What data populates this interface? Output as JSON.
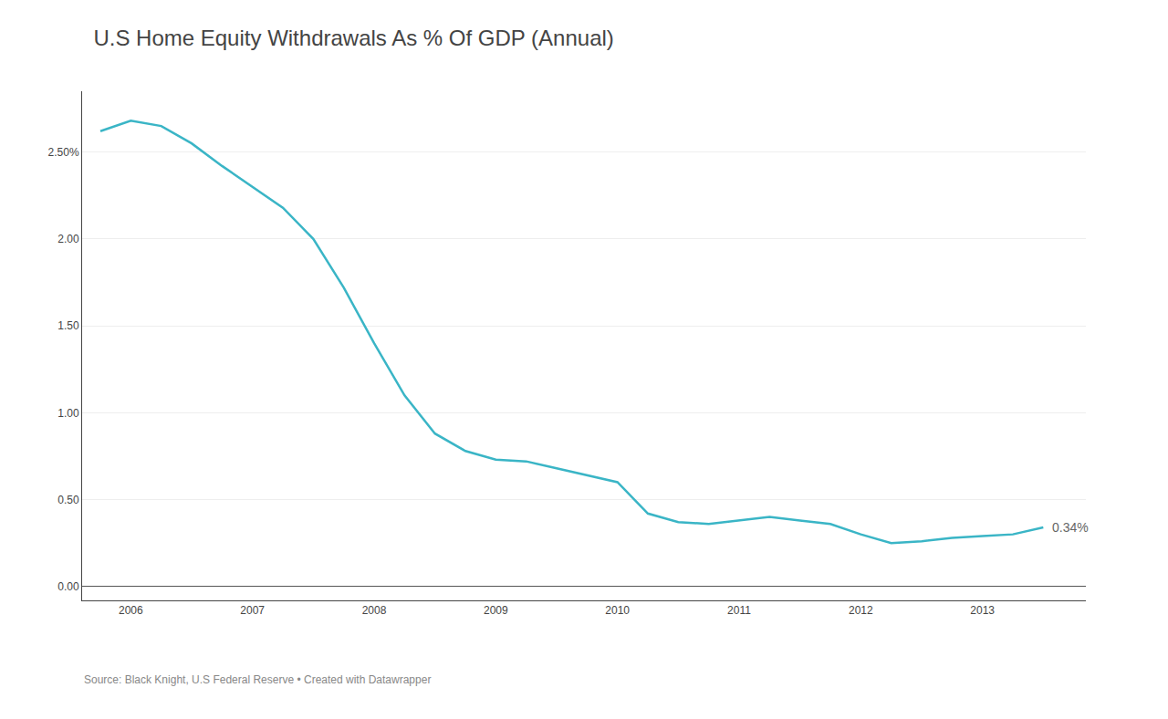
{
  "chart_data": {
    "type": "line",
    "title": "U.S Home Equity Withdrawals As % Of GDP (Annual)",
    "source": "Source: Black Knight, U.S Federal Reserve • Created with Datawrapper",
    "x": [
      2005.75,
      2006.0,
      2006.25,
      2006.5,
      2006.75,
      2007.0,
      2007.25,
      2007.5,
      2007.75,
      2008.0,
      2008.25,
      2008.5,
      2008.75,
      2009.0,
      2009.25,
      2009.5,
      2009.75,
      2010.0,
      2010.25,
      2010.5,
      2010.75,
      2011.0,
      2011.25,
      2011.5,
      2011.75,
      2012.0,
      2012.25,
      2012.5,
      2012.75,
      2013.0,
      2013.25,
      2013.5
    ],
    "values": [
      2.62,
      2.68,
      2.65,
      2.55,
      2.42,
      2.3,
      2.18,
      2.0,
      1.72,
      1.4,
      1.1,
      0.88,
      0.78,
      0.73,
      0.72,
      0.68,
      0.64,
      0.6,
      0.42,
      0.37,
      0.36,
      0.38,
      0.4,
      0.38,
      0.36,
      0.3,
      0.25,
      0.26,
      0.28,
      0.29,
      0.3,
      0.34
    ],
    "color": "#3ab5c6",
    "xlim": [
      2005.6,
      2013.85
    ],
    "ylim": [
      -0.08,
      2.85
    ],
    "xticks": [
      2006,
      2007,
      2008,
      2009,
      2010,
      2011,
      2012,
      2013
    ],
    "yticks": [
      {
        "value": 0.0,
        "label": "0.00"
      },
      {
        "value": 0.5,
        "label": "0.50"
      },
      {
        "value": 1.0,
        "label": "1.00"
      },
      {
        "value": 1.5,
        "label": "1.50"
      },
      {
        "value": 2.0,
        "label": "2.00"
      },
      {
        "value": 2.5,
        "label": "2.50%"
      }
    ],
    "grid": "y",
    "annotations": [
      {
        "text": "0.34%",
        "x": 2013.5,
        "y": 0.34
      }
    ]
  }
}
